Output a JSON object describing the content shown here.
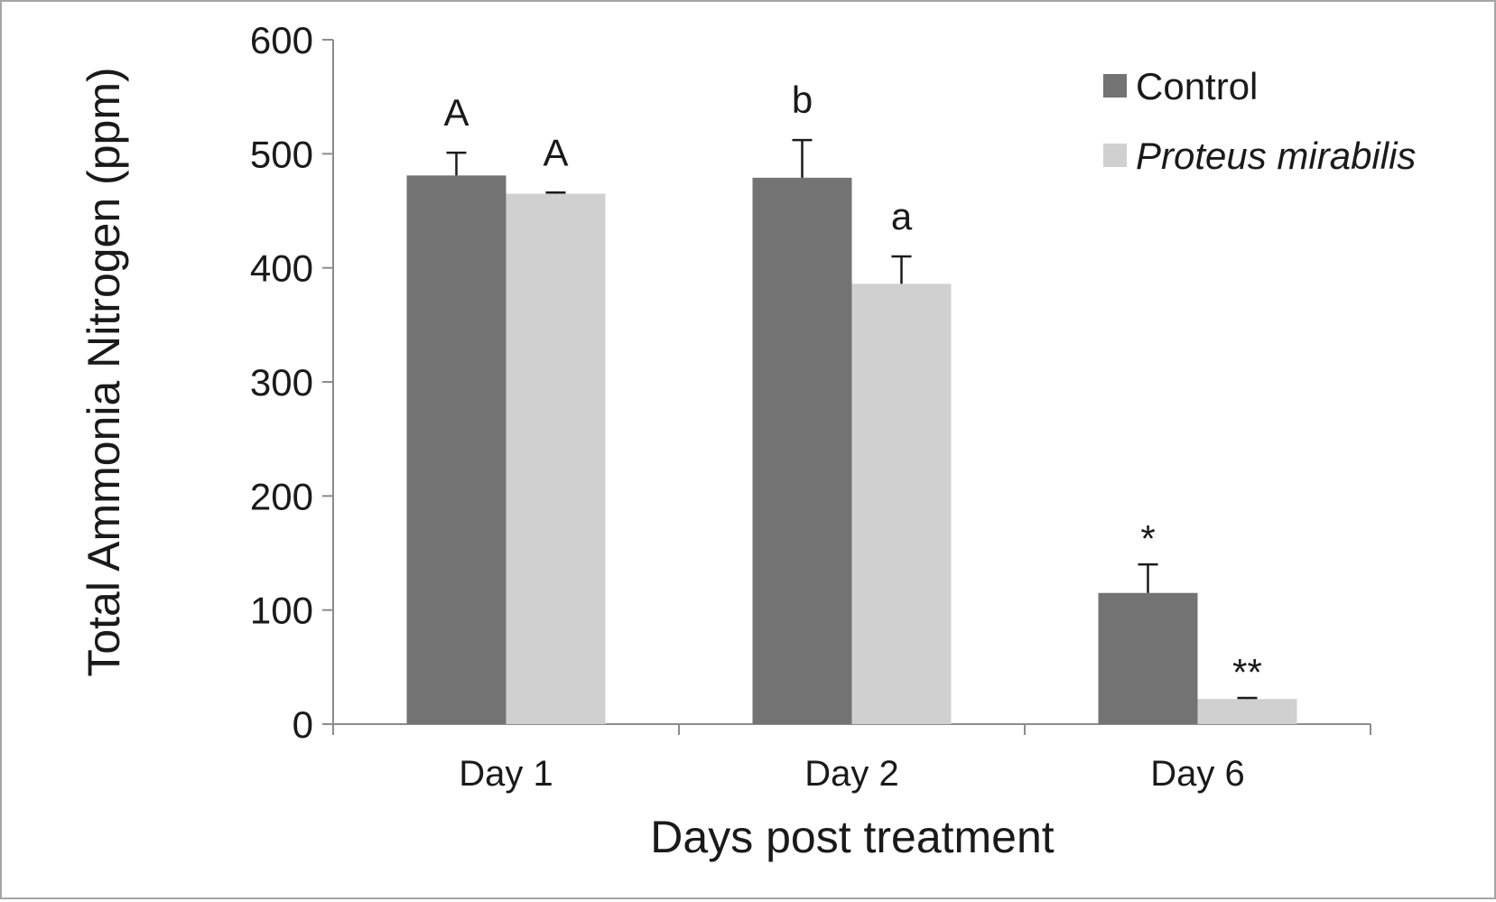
{
  "chart_data": {
    "type": "bar",
    "xlabel": "Days post treatment",
    "ylabel": "Total Ammonia Nitrogen (ppm)",
    "ylim": [
      0,
      600
    ],
    "yticks": [
      "0",
      "100",
      "200",
      "300",
      "400",
      "500",
      "600"
    ],
    "categories": [
      "Day 1",
      "Day 2",
      "Day 6"
    ],
    "series": [
      {
        "name": "Control",
        "color": "#737373",
        "italic": false,
        "values": [
          481,
          479,
          115
        ],
        "errors": [
          20,
          33,
          25
        ],
        "labels": [
          "A",
          "b",
          "*"
        ]
      },
      {
        "name": "Proteus mirabilis",
        "color": "#d0d0d0",
        "italic": true,
        "values": [
          465,
          386,
          22
        ],
        "errors": [
          1,
          24,
          1
        ],
        "labels": [
          "A",
          "a",
          "**"
        ]
      }
    ],
    "legend_position": "top-right",
    "grid": false
  }
}
